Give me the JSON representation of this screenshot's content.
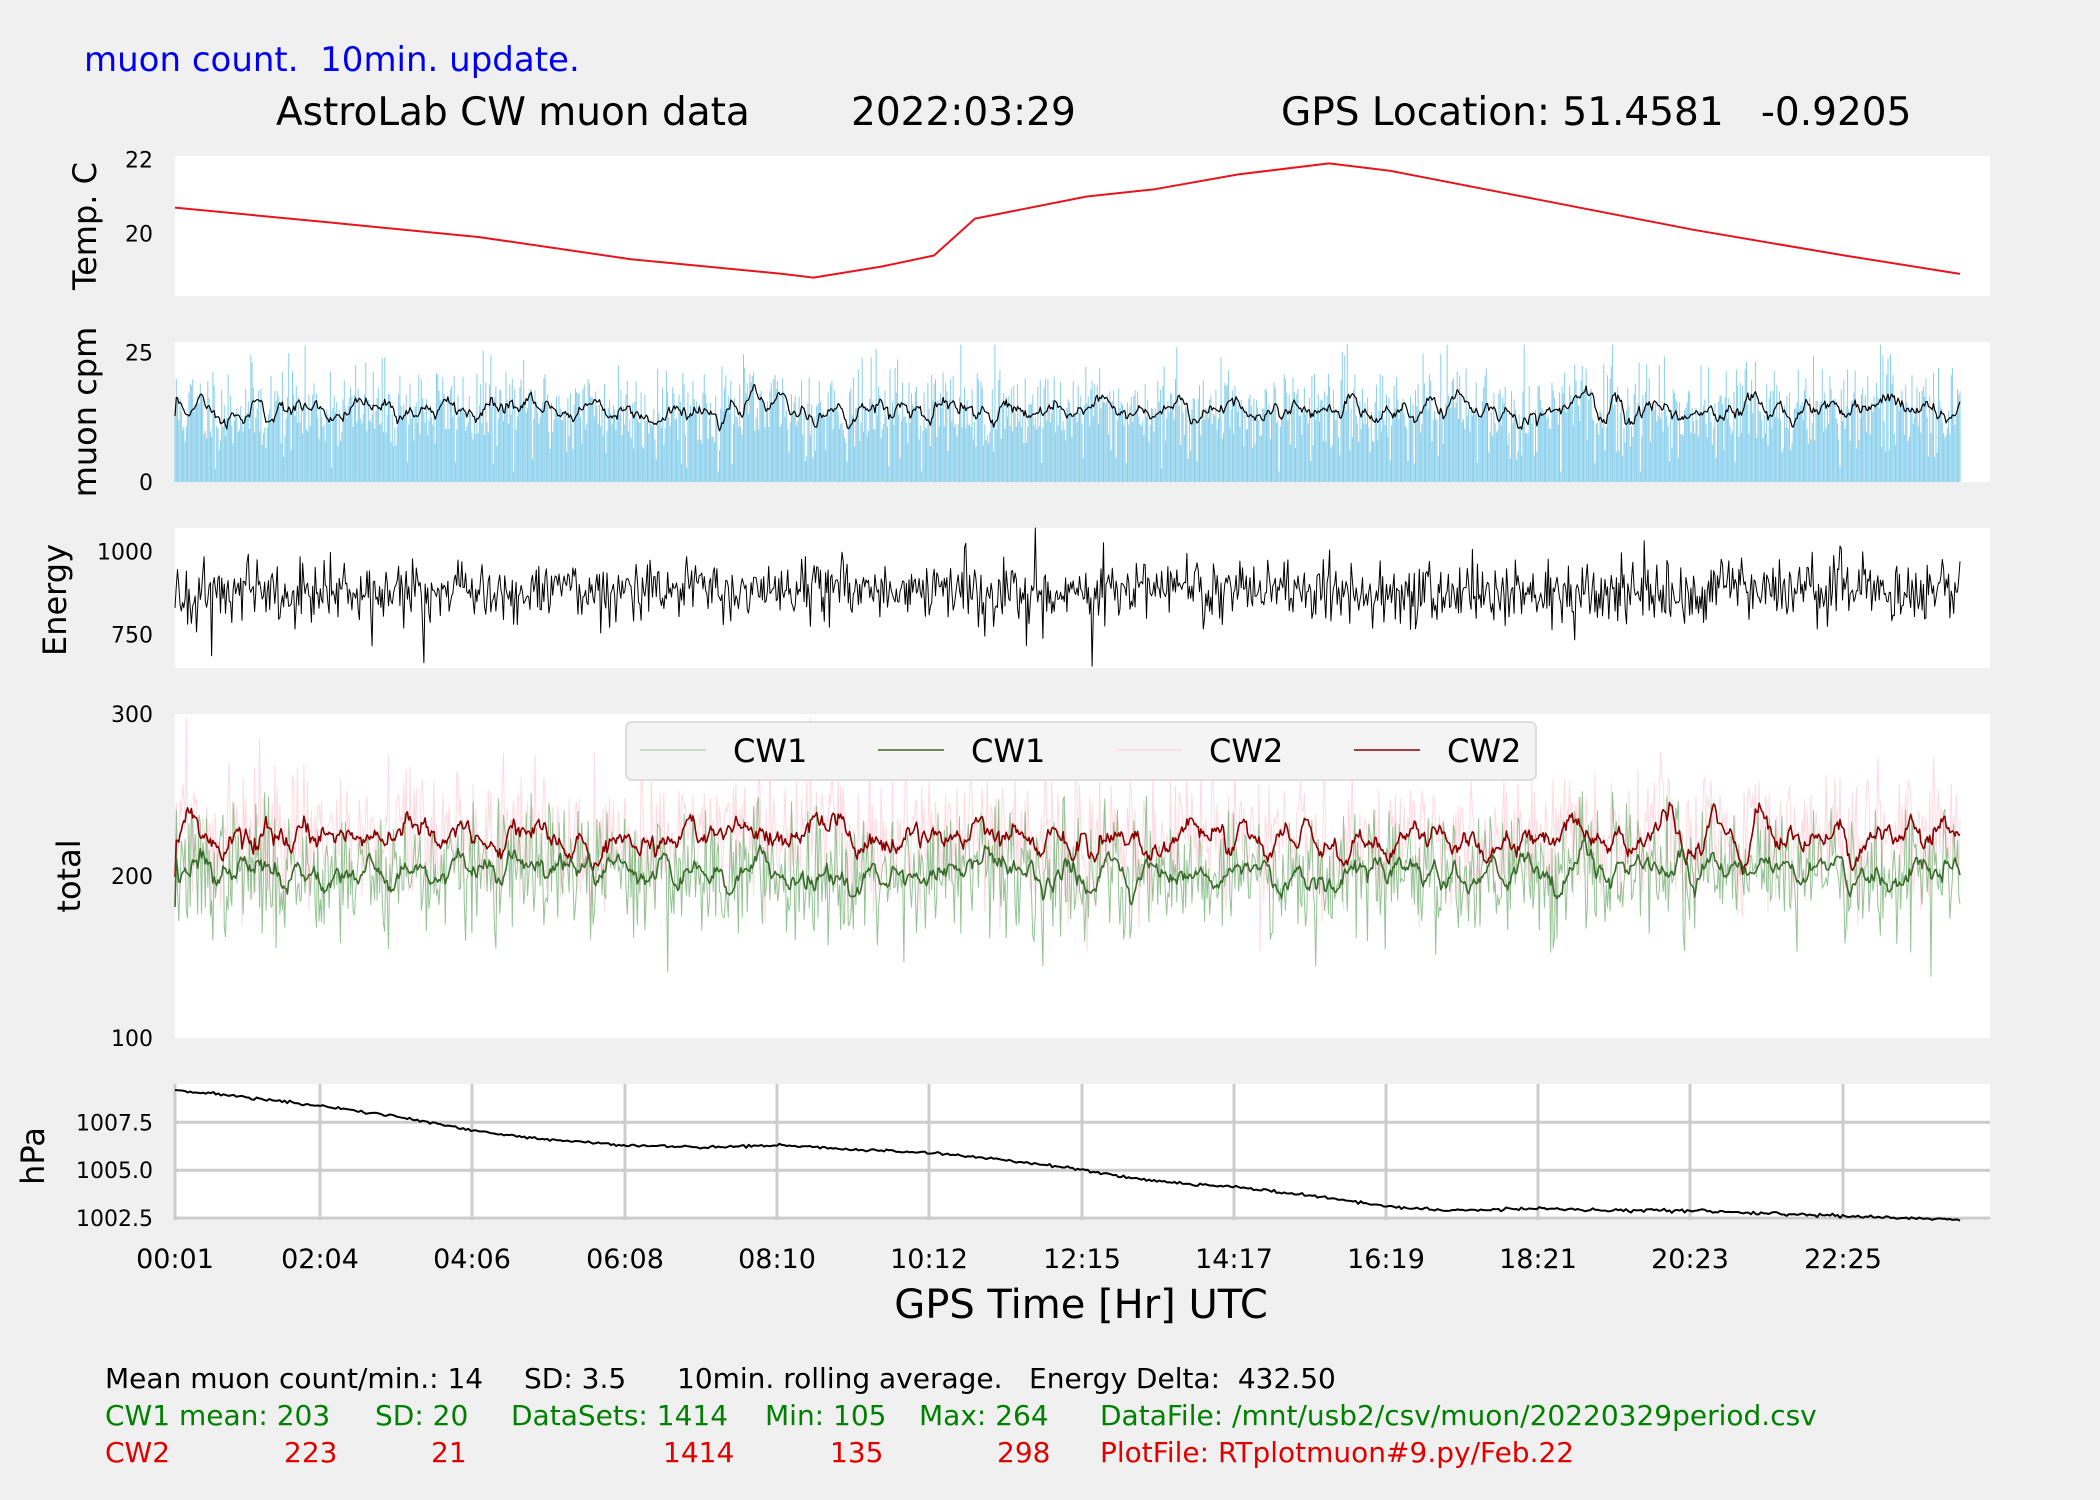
{
  "header": {
    "subtitle": "muon count.  10min. update.",
    "title_main": "AstroLab CW muon data",
    "title_date": "2022:03:29",
    "title_gps": "GPS Location: 51.4581   -0.9205"
  },
  "xaxis": {
    "label": "GPS Time  [Hr] UTC",
    "ticks": [
      "00:01",
      "02:04",
      "04:06",
      "06:08",
      "08:10",
      "10:12",
      "12:15",
      "14:17",
      "16:19",
      "18:21",
      "20:23",
      "22:25"
    ]
  },
  "footer": {
    "line1": {
      "mean": "Mean muon count/min.: 14",
      "sd": "SD: 3.5",
      "rolling": "10min. rolling average.",
      "energy_delta": "Energy Delta:  432.50"
    },
    "cw1": {
      "label": "CW1 mean: 203",
      "sd": "SD: 20",
      "datasets": "DataSets: 1414",
      "min": "Min: 105",
      "max": "Max: 264",
      "file": "DataFile: /mnt/usb2/csv/muon/20220329period.csv"
    },
    "cw2": {
      "label": "CW2",
      "mean": "223",
      "sd": "21",
      "datasets": "1414",
      "min": "135",
      "max": "298",
      "file": "PlotFile: RTplotmuon#9.py/Feb.22"
    }
  },
  "colors": {
    "temp": "#e8141c",
    "muon_bars": "#87ceeb",
    "cw1_raw": "#66aa66",
    "cw1_avg": "#3a6a2a",
    "cw2_raw": "#ffc0cb",
    "cw2_avg": "#8b0000",
    "black": "#000000"
  },
  "chart_data": [
    {
      "type": "line",
      "ylabel": "Temp. C",
      "ylim": [
        18.3,
        22.1
      ],
      "yticks": [
        "20",
        "22"
      ],
      "x": [
        "00:01",
        "02:04",
        "04:06",
        "06:08",
        "08:10",
        "08:35",
        "09:30",
        "10:12",
        "10:45",
        "12:15",
        "13:10",
        "14:17",
        "15:30",
        "16:19",
        "18:21",
        "20:23",
        "22:25",
        "23:58"
      ],
      "values": [
        20.7,
        20.3,
        19.9,
        19.3,
        18.9,
        18.8,
        19.1,
        19.4,
        20.4,
        21.0,
        21.2,
        21.6,
        21.9,
        21.7,
        20.9,
        20.1,
        19.4,
        18.9
      ]
    },
    {
      "type": "bar",
      "ylabel": "muon cpm",
      "ylim": [
        0,
        27
      ],
      "yticks": [
        "0",
        "25"
      ],
      "mean": 14,
      "sd": 3.5,
      "rolling_average_min": 10,
      "x_range": [
        "00:01",
        "23:58"
      ]
    },
    {
      "type": "line",
      "ylabel": "Energy",
      "ylim": [
        650,
        1070
      ],
      "yticks": [
        "750",
        "1000"
      ],
      "mean_approx": 880,
      "x_range": [
        "00:01",
        "23:58"
      ]
    },
    {
      "type": "line",
      "ylabel": "total",
      "ylim": [
        100,
        300
      ],
      "yticks": [
        "100",
        "200",
        "300"
      ],
      "legend": [
        "CW1",
        "CW1",
        "CW2",
        "CW2"
      ],
      "legend_placement": "top-center",
      "series": [
        {
          "legend_index": 0,
          "style": "raw",
          "mean": 203,
          "sd": 20,
          "min": 105,
          "max": 264
        },
        {
          "legend_index": 1,
          "style": "rolling",
          "mean": 203
        },
        {
          "legend_index": 2,
          "style": "raw",
          "mean": 223,
          "sd": 21,
          "min": 135,
          "max": 298
        },
        {
          "legend_index": 3,
          "style": "rolling",
          "mean": 223
        }
      ]
    },
    {
      "type": "line",
      "ylabel": "hPa",
      "ylim": [
        1002.4,
        1009.5
      ],
      "yticks": [
        "1002.5",
        "1005.0",
        "1007.5"
      ],
      "grid": true,
      "x": [
        "00:01",
        "01:00",
        "02:04",
        "03:00",
        "04:06",
        "05:00",
        "06:08",
        "07:00",
        "08:10",
        "09:00",
        "10:12",
        "11:00",
        "12:15",
        "13:00",
        "14:17",
        "15:00",
        "16:19",
        "17:00",
        "18:21",
        "19:00",
        "20:23",
        "21:00",
        "22:25",
        "23:58"
      ],
      "values": [
        1009.2,
        1008.8,
        1008.3,
        1007.8,
        1007.0,
        1006.6,
        1006.3,
        1006.2,
        1006.3,
        1006.1,
        1005.9,
        1005.6,
        1005.0,
        1004.5,
        1004.1,
        1003.8,
        1003.1,
        1002.9,
        1003.0,
        1002.9,
        1002.9,
        1002.8,
        1002.6,
        1002.4
      ]
    }
  ]
}
